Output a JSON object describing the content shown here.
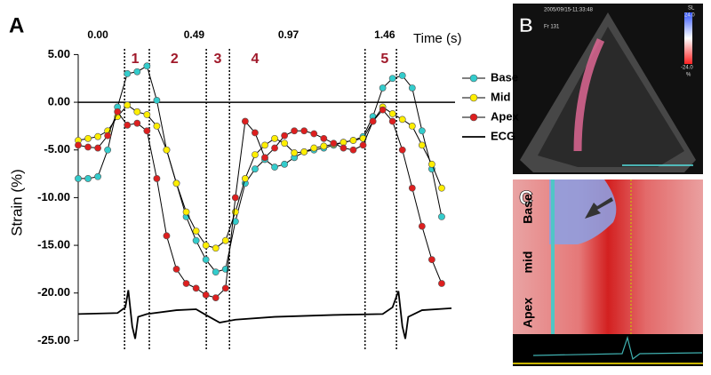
{
  "panels": {
    "a": "A",
    "b": "B",
    "c": "C"
  },
  "chart_data": {
    "type": "line",
    "x_label": "Time (s)",
    "y_label": "Strain (%)",
    "xlim": [
      -0.1,
      1.8
    ],
    "xticks": [
      {
        "value": 0,
        "label": "0.00"
      },
      0.49,
      0.97,
      1.46
    ],
    "ylim": [
      -25,
      5
    ],
    "yticks": [
      {
        "value": 5,
        "label": "5.00"
      },
      {
        "value": 0,
        "label": "0.00"
      },
      {
        "value": -5,
        "label": "-5.00"
      },
      {
        "value": -10,
        "label": "-10.00"
      },
      {
        "value": -15,
        "label": "-15.00"
      },
      {
        "value": -20,
        "label": "-20.00"
      },
      {
        "value": -25,
        "label": "-25.00"
      }
    ],
    "phase_boundaries": [
      0.136,
      0.262,
      0.552,
      0.67,
      1.36,
      1.52
    ],
    "phase_labels": [
      {
        "x": 0.19,
        "label": "1"
      },
      {
        "x": 0.39,
        "label": "2"
      },
      {
        "x": 0.61,
        "label": "3"
      },
      {
        "x": 0.8,
        "label": "4"
      },
      {
        "x": 1.46,
        "label": "5"
      }
    ],
    "legend": "right",
    "x": [
      -0.1,
      -0.05,
      0,
      0.05,
      0.1,
      0.15,
      0.2,
      0.25,
      0.3,
      0.35,
      0.4,
      0.45,
      0.5,
      0.55,
      0.6,
      0.65,
      0.7,
      0.75,
      0.8,
      0.85,
      0.9,
      0.95,
      1.0,
      1.05,
      1.1,
      1.15,
      1.2,
      1.25,
      1.3,
      1.35,
      1.4,
      1.45,
      1.5,
      1.55,
      1.6,
      1.65,
      1.7,
      1.75
    ],
    "series": [
      {
        "name": "Base",
        "color": "#33cccc",
        "markers": true,
        "values": [
          -8,
          -8,
          -7.8,
          -5,
          -0.5,
          3,
          3.2,
          3.8,
          0.2,
          -5,
          -8.5,
          -12,
          -14.5,
          -16.5,
          -17.8,
          -17.5,
          -12.5,
          -8.5,
          -7,
          -6,
          -6.8,
          -6.5,
          -5.8,
          -5.2,
          -5,
          -4.8,
          -4.5,
          -4.2,
          -4,
          -3.6,
          -1.5,
          1.5,
          2.5,
          2.8,
          1.5,
          -3,
          -7,
          -12
        ]
      },
      {
        "name": "Mid",
        "color": "#ffee00",
        "markers": true,
        "values": [
          -4,
          -3.8,
          -3.6,
          -3,
          -1.5,
          -0.3,
          -1,
          -1.3,
          -2.5,
          -5,
          -8.5,
          -11.5,
          -13.5,
          -15,
          -15.3,
          -14.5,
          -11.5,
          -8,
          -5.5,
          -4.5,
          -3.8,
          -4.3,
          -5.3,
          -5.2,
          -4.8,
          -4.6,
          -4.4,
          -4.2,
          -4,
          -3.8,
          -2,
          -0.5,
          -1.2,
          -1.8,
          -2.5,
          -4.5,
          -6.5,
          -9
        ]
      },
      {
        "name": "Apex",
        "color": "#dd1f1f",
        "markers": true,
        "values": [
          -4.5,
          -4.7,
          -4.8,
          -3.5,
          -1,
          -2.4,
          -2.2,
          -3,
          -8,
          -14,
          -17.5,
          -19,
          -19.5,
          -20.2,
          -20.5,
          -19.5,
          -10,
          -2,
          -3.2,
          -5.8,
          -4.8,
          -3.5,
          -3,
          -3,
          -3.3,
          -3.8,
          -4.3,
          -4.8,
          -5,
          -4.5,
          -2,
          -0.8,
          -2,
          -5,
          -9,
          -13,
          -16.5,
          -19
        ]
      },
      {
        "name": "ECG",
        "color": "#000000",
        "markers": false,
        "x": [
          -0.1,
          0.1,
          0.14,
          0.155,
          0.175,
          0.19,
          0.205,
          0.25,
          0.4,
          0.5,
          0.55,
          0.62,
          0.7,
          0.9,
          1.2,
          1.45,
          1.5,
          1.53,
          1.55,
          1.565,
          1.58,
          1.65,
          1.8
        ],
        "values": [
          -22.2,
          -22.1,
          -21.5,
          -19.7,
          -23.5,
          -24.8,
          -22.5,
          -22.2,
          -21.8,
          -21.7,
          -22.3,
          -23.1,
          -22.8,
          -22.5,
          -22.3,
          -22.2,
          -21.5,
          -19.8,
          -23.5,
          -24.8,
          -22.5,
          -21.8,
          -21.6
        ]
      }
    ]
  },
  "image_b": {
    "timestamp": "2005/09/15-11:33:48",
    "frame": "Fr 131",
    "mode": "SL",
    "scale_top": "24.0",
    "scale_bottom": "-24.0",
    "unit": "%"
  },
  "image_c": {
    "rows": [
      "Base",
      "mid",
      "Apex"
    ]
  }
}
